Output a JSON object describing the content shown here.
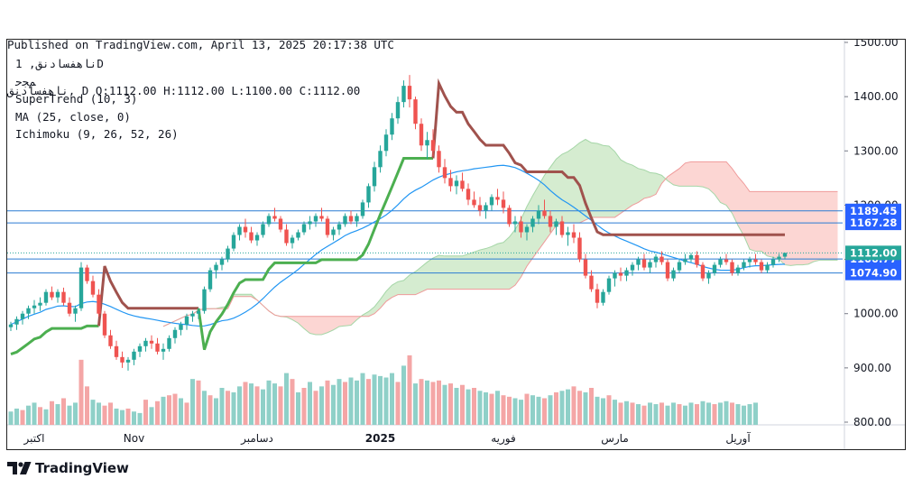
{
  "header": {
    "published": "Published on TradingView.com, April 13, 2025 20:17:38 UTC",
    "ohlc": "ناهفسادنق, D O:1112.00 H:1112.00 L:1100.00 C:1112.00"
  },
  "legend": {
    "symbol": "ناهفسادنق, 1D",
    "sub": "ﻢﺠﺣ",
    "supertrend": "SuperTrend (10, 3)",
    "ma": "MA (25, close, 0)",
    "ichimoku": "Ichimoku (9, 26, 52, 26)"
  },
  "brand": {
    "name": "TradingView",
    "logo_icon": "tradingview-logo-icon"
  },
  "colors": {
    "up": "#26a69a",
    "down": "#ef5350",
    "vol_up": "#8fd0c8",
    "vol_down": "#f4a6a6",
    "supertrend_up": "#4caf50",
    "supertrend_down": "#a0524d",
    "ma": "#2196f3",
    "cloud_bull": "#d5ecd0",
    "cloud_bear": "#fcd6d3",
    "hline": "#2a7bd3",
    "price_tag": "#2962ff"
  },
  "chart_data": {
    "type": "candlestick",
    "y_ticks": [
      1500,
      1400,
      1300,
      1200,
      1100,
      1000,
      900,
      800
    ],
    "y_tick_labels": [
      "1500.00",
      "1400.00",
      "1300.00",
      "1200.00",
      "1100.00",
      "1000.00",
      "900.00",
      "800.00"
    ],
    "ylim": [
      795,
      1505
    ],
    "x_labels": [
      {
        "label": "اکتبر",
        "bar": 4
      },
      {
        "label": "Nov",
        "bar": 21
      },
      {
        "label": "دسامبر",
        "bar": 42
      },
      {
        "label": "2025",
        "bar": 63
      },
      {
        "label": "فوریه",
        "bar": 84
      },
      {
        "label": "مارس",
        "bar": 103
      },
      {
        "label": "آوریل",
        "bar": 124
      }
    ],
    "price_levels": [
      {
        "value": 1189.45,
        "label": "1189.45"
      },
      {
        "value": 1167.28,
        "label": "1167.28"
      },
      {
        "value": 1100.77,
        "label": "1100.77"
      },
      {
        "value": 1074.9,
        "label": "1074.90"
      }
    ],
    "last_price": {
      "value": 1112.0,
      "label": "1112.00"
    },
    "candles": [
      [
        975,
        985,
        968,
        980
      ],
      [
        980,
        995,
        970,
        990
      ],
      [
        990,
        1005,
        980,
        1000
      ],
      [
        1000,
        1015,
        990,
        1010
      ],
      [
        1010,
        1025,
        1000,
        1015
      ],
      [
        1015,
        1030,
        1005,
        1020
      ],
      [
        1020,
        1045,
        1015,
        1040
      ],
      [
        1040,
        1050,
        1025,
        1030
      ],
      [
        1030,
        1045,
        1020,
        1040
      ],
      [
        1040,
        1048,
        1015,
        1020
      ],
      [
        1020,
        1030,
        995,
        1000
      ],
      [
        1000,
        1015,
        985,
        1010
      ],
      [
        1010,
        1095,
        1005,
        1085
      ],
      [
        1085,
        1090,
        1055,
        1060
      ],
      [
        1060,
        1070,
        1030,
        1035
      ],
      [
        1035,
        1045,
        995,
        1000
      ],
      [
        1000,
        1005,
        955,
        960
      ],
      [
        960,
        970,
        935,
        940
      ],
      [
        940,
        950,
        915,
        920
      ],
      [
        920,
        930,
        900,
        910
      ],
      [
        910,
        920,
        895,
        915
      ],
      [
        915,
        935,
        905,
        930
      ],
      [
        930,
        945,
        920,
        940
      ],
      [
        940,
        955,
        930,
        950
      ],
      [
        950,
        960,
        935,
        945
      ],
      [
        945,
        955,
        925,
        930
      ],
      [
        930,
        945,
        915,
        935
      ],
      [
        935,
        960,
        930,
        955
      ],
      [
        955,
        975,
        945,
        970
      ],
      [
        970,
        985,
        960,
        980
      ],
      [
        980,
        1000,
        970,
        995
      ],
      [
        995,
        1005,
        985,
        1000
      ],
      [
        1000,
        1010,
        990,
        1005
      ],
      [
        1005,
        1050,
        1000,
        1045
      ],
      [
        1045,
        1085,
        1040,
        1080
      ],
      [
        1080,
        1095,
        1065,
        1090
      ],
      [
        1090,
        1105,
        1080,
        1100
      ],
      [
        1100,
        1125,
        1095,
        1120
      ],
      [
        1120,
        1150,
        1115,
        1145
      ],
      [
        1145,
        1165,
        1135,
        1160
      ],
      [
        1160,
        1175,
        1140,
        1150
      ],
      [
        1150,
        1160,
        1130,
        1135
      ],
      [
        1135,
        1150,
        1125,
        1145
      ],
      [
        1145,
        1170,
        1140,
        1165
      ],
      [
        1165,
        1185,
        1160,
        1180
      ],
      [
        1180,
        1195,
        1170,
        1175
      ],
      [
        1175,
        1180,
        1150,
        1155
      ],
      [
        1155,
        1165,
        1125,
        1130
      ],
      [
        1130,
        1145,
        1120,
        1140
      ],
      [
        1140,
        1155,
        1135,
        1150
      ],
      [
        1150,
        1170,
        1145,
        1165
      ],
      [
        1165,
        1180,
        1155,
        1170
      ],
      [
        1170,
        1185,
        1160,
        1180
      ],
      [
        1180,
        1195,
        1170,
        1175
      ],
      [
        1175,
        1180,
        1140,
        1145
      ],
      [
        1145,
        1160,
        1135,
        1155
      ],
      [
        1155,
        1170,
        1145,
        1165
      ],
      [
        1165,
        1185,
        1160,
        1180
      ],
      [
        1180,
        1190,
        1165,
        1170
      ],
      [
        1170,
        1185,
        1160,
        1180
      ],
      [
        1180,
        1210,
        1175,
        1205
      ],
      [
        1205,
        1240,
        1195,
        1235
      ],
      [
        1235,
        1280,
        1225,
        1270
      ],
      [
        1270,
        1310,
        1260,
        1300
      ],
      [
        1300,
        1340,
        1290,
        1330
      ],
      [
        1330,
        1370,
        1320,
        1360
      ],
      [
        1360,
        1400,
        1350,
        1390
      ],
      [
        1390,
        1430,
        1380,
        1420
      ],
      [
        1420,
        1440,
        1380,
        1395
      ],
      [
        1395,
        1400,
        1340,
        1350
      ],
      [
        1350,
        1360,
        1300,
        1310
      ],
      [
        1310,
        1335,
        1285,
        1320
      ],
      [
        1320,
        1340,
        1290,
        1300
      ],
      [
        1300,
        1310,
        1260,
        1270
      ],
      [
        1270,
        1285,
        1240,
        1250
      ],
      [
        1250,
        1265,
        1225,
        1235
      ],
      [
        1235,
        1255,
        1220,
        1245
      ],
      [
        1245,
        1260,
        1225,
        1230
      ],
      [
        1230,
        1240,
        1200,
        1210
      ],
      [
        1210,
        1225,
        1195,
        1200
      ],
      [
        1200,
        1215,
        1180,
        1190
      ],
      [
        1190,
        1205,
        1175,
        1200
      ],
      [
        1200,
        1220,
        1190,
        1215
      ],
      [
        1215,
        1230,
        1200,
        1210
      ],
      [
        1210,
        1225,
        1185,
        1195
      ],
      [
        1195,
        1200,
        1160,
        1165
      ],
      [
        1165,
        1180,
        1150,
        1170
      ],
      [
        1170,
        1180,
        1140,
        1150
      ],
      [
        1150,
        1165,
        1135,
        1160
      ],
      [
        1160,
        1180,
        1150,
        1175
      ],
      [
        1175,
        1200,
        1165,
        1190
      ],
      [
        1190,
        1210,
        1175,
        1180
      ],
      [
        1180,
        1190,
        1150,
        1160
      ],
      [
        1160,
        1175,
        1145,
        1170
      ],
      [
        1170,
        1180,
        1140,
        1145
      ],
      [
        1145,
        1160,
        1125,
        1150
      ],
      [
        1150,
        1165,
        1130,
        1140
      ],
      [
        1140,
        1150,
        1095,
        1100
      ],
      [
        1100,
        1110,
        1065,
        1070
      ],
      [
        1070,
        1080,
        1040,
        1045
      ],
      [
        1045,
        1055,
        1010,
        1020
      ],
      [
        1020,
        1045,
        1015,
        1040
      ],
      [
        1040,
        1070,
        1035,
        1065
      ],
      [
        1065,
        1080,
        1050,
        1075
      ],
      [
        1075,
        1085,
        1060,
        1070
      ],
      [
        1070,
        1085,
        1060,
        1080
      ],
      [
        1080,
        1095,
        1070,
        1090
      ],
      [
        1090,
        1105,
        1080,
        1100
      ],
      [
        1100,
        1110,
        1080,
        1085
      ],
      [
        1085,
        1100,
        1075,
        1095
      ],
      [
        1095,
        1110,
        1085,
        1105
      ],
      [
        1105,
        1115,
        1090,
        1095
      ],
      [
        1095,
        1100,
        1060,
        1065
      ],
      [
        1065,
        1085,
        1060,
        1080
      ],
      [
        1080,
        1100,
        1075,
        1095
      ],
      [
        1095,
        1110,
        1090,
        1100
      ],
      [
        1100,
        1112,
        1095,
        1108
      ],
      [
        1108,
        1115,
        1085,
        1090
      ],
      [
        1090,
        1095,
        1060,
        1065
      ],
      [
        1065,
        1080,
        1055,
        1075
      ],
      [
        1075,
        1095,
        1070,
        1090
      ],
      [
        1090,
        1105,
        1085,
        1100
      ],
      [
        1100,
        1110,
        1090,
        1095
      ],
      [
        1095,
        1100,
        1070,
        1075
      ],
      [
        1075,
        1090,
        1070,
        1085
      ],
      [
        1085,
        1100,
        1080,
        1095
      ],
      [
        1095,
        1105,
        1085,
        1100
      ],
      [
        1100,
        1110,
        1090,
        1095
      ],
      [
        1095,
        1100,
        1075,
        1080
      ],
      [
        1080,
        1095,
        1075,
        1090
      ],
      [
        1090,
        1105,
        1085,
        1100
      ],
      [
        1100,
        1110,
        1095,
        1105
      ],
      [
        1105,
        1112,
        1100,
        1112
      ]
    ],
    "volumes": [
      [
        1,
        18
      ],
      [
        1,
        22
      ],
      [
        0,
        20
      ],
      [
        1,
        26
      ],
      [
        1,
        30
      ],
      [
        0,
        24
      ],
      [
        1,
        21
      ],
      [
        0,
        32
      ],
      [
        1,
        28
      ],
      [
        0,
        36
      ],
      [
        1,
        26
      ],
      [
        1,
        30
      ],
      [
        0,
        88
      ],
      [
        0,
        52
      ],
      [
        1,
        34
      ],
      [
        1,
        30
      ],
      [
        0,
        26
      ],
      [
        0,
        30
      ],
      [
        1,
        22
      ],
      [
        1,
        20
      ],
      [
        0,
        22
      ],
      [
        1,
        18
      ],
      [
        1,
        16
      ],
      [
        0,
        34
      ],
      [
        1,
        24
      ],
      [
        0,
        32
      ],
      [
        1,
        38
      ],
      [
        0,
        40
      ],
      [
        0,
        42
      ],
      [
        1,
        36
      ],
      [
        0,
        30
      ],
      [
        1,
        62
      ],
      [
        0,
        60
      ],
      [
        1,
        46
      ],
      [
        0,
        40
      ],
      [
        1,
        36
      ],
      [
        1,
        50
      ],
      [
        0,
        46
      ],
      [
        1,
        44
      ],
      [
        1,
        52
      ],
      [
        0,
        58
      ],
      [
        1,
        56
      ],
      [
        0,
        52
      ],
      [
        1,
        48
      ],
      [
        1,
        60
      ],
      [
        1,
        56
      ],
      [
        0,
        52
      ],
      [
        1,
        70
      ],
      [
        0,
        62
      ],
      [
        1,
        44
      ],
      [
        0,
        50
      ],
      [
        1,
        58
      ],
      [
        0,
        46
      ],
      [
        1,
        52
      ],
      [
        0,
        60
      ],
      [
        1,
        54
      ],
      [
        1,
        62
      ],
      [
        0,
        58
      ],
      [
        1,
        64
      ],
      [
        1,
        60
      ],
      [
        1,
        70
      ],
      [
        0,
        62
      ],
      [
        1,
        68
      ],
      [
        1,
        66
      ],
      [
        1,
        64
      ],
      [
        1,
        70
      ],
      [
        0,
        58
      ],
      [
        1,
        80
      ],
      [
        0,
        94
      ],
      [
        1,
        56
      ],
      [
        0,
        62
      ],
      [
        1,
        60
      ],
      [
        0,
        58
      ],
      [
        0,
        60
      ],
      [
        1,
        54
      ],
      [
        0,
        56
      ],
      [
        1,
        50
      ],
      [
        0,
        54
      ],
      [
        1,
        48
      ],
      [
        0,
        50
      ],
      [
        1,
        46
      ],
      [
        1,
        44
      ],
      [
        0,
        42
      ],
      [
        1,
        46
      ],
      [
        0,
        40
      ],
      [
        0,
        38
      ],
      [
        1,
        36
      ],
      [
        1,
        34
      ],
      [
        0,
        42
      ],
      [
        1,
        40
      ],
      [
        1,
        38
      ],
      [
        0,
        36
      ],
      [
        1,
        40
      ],
      [
        0,
        44
      ],
      [
        1,
        46
      ],
      [
        1,
        48
      ],
      [
        0,
        52
      ],
      [
        0,
        46
      ],
      [
        1,
        44
      ],
      [
        0,
        50
      ],
      [
        1,
        38
      ],
      [
        1,
        36
      ],
      [
        0,
        40
      ],
      [
        1,
        34
      ],
      [
        0,
        30
      ],
      [
        1,
        32
      ],
      [
        0,
        30
      ],
      [
        1,
        28
      ],
      [
        0,
        26
      ],
      [
        1,
        30
      ],
      [
        1,
        28
      ],
      [
        0,
        30
      ],
      [
        1,
        26
      ],
      [
        1,
        30
      ],
      [
        0,
        28
      ],
      [
        1,
        26
      ],
      [
        1,
        30
      ],
      [
        0,
        28
      ],
      [
        1,
        32
      ],
      [
        1,
        30
      ],
      [
        0,
        28
      ],
      [
        1,
        30
      ],
      [
        1,
        32
      ],
      [
        0,
        30
      ],
      [
        1,
        28
      ],
      [
        1,
        26
      ],
      [
        1,
        28
      ],
      [
        1,
        30
      ]
    ]
  }
}
